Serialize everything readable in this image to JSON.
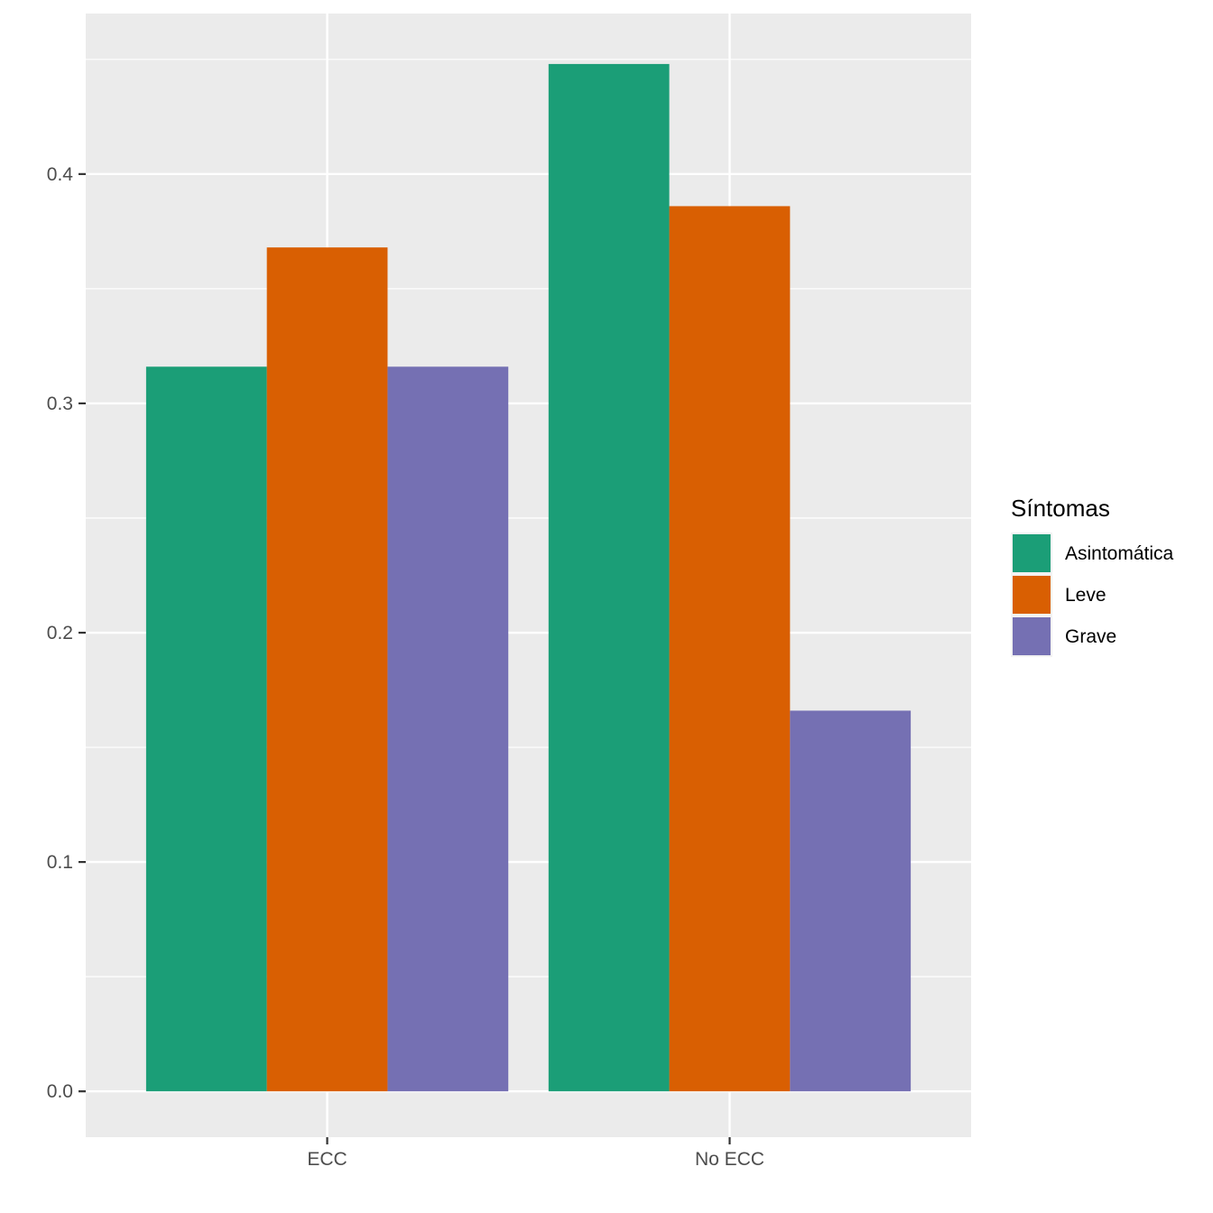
{
  "chart_data": {
    "type": "bar",
    "categories": [
      "ECC",
      "No ECC"
    ],
    "series": [
      {
        "name": "Asintomática",
        "color": "#1B9E77",
        "values": [
          0.316,
          0.448
        ]
      },
      {
        "name": "Leve",
        "color": "#D95F02",
        "values": [
          0.368,
          0.386
        ]
      },
      {
        "name": "Grave",
        "color": "#7570B3",
        "values": [
          0.316,
          0.166
        ]
      }
    ],
    "title": "",
    "xlabel": "",
    "ylabel": "",
    "ylim": [
      -0.02,
      0.47
    ],
    "yticks": [
      0.0,
      0.1,
      0.2,
      0.3,
      0.4
    ],
    "ytick_labels": [
      "0.0",
      "0.1",
      "0.2",
      "0.3",
      "0.4"
    ],
    "grid": true,
    "legend": {
      "title": "Síntomas",
      "position": "right"
    }
  }
}
